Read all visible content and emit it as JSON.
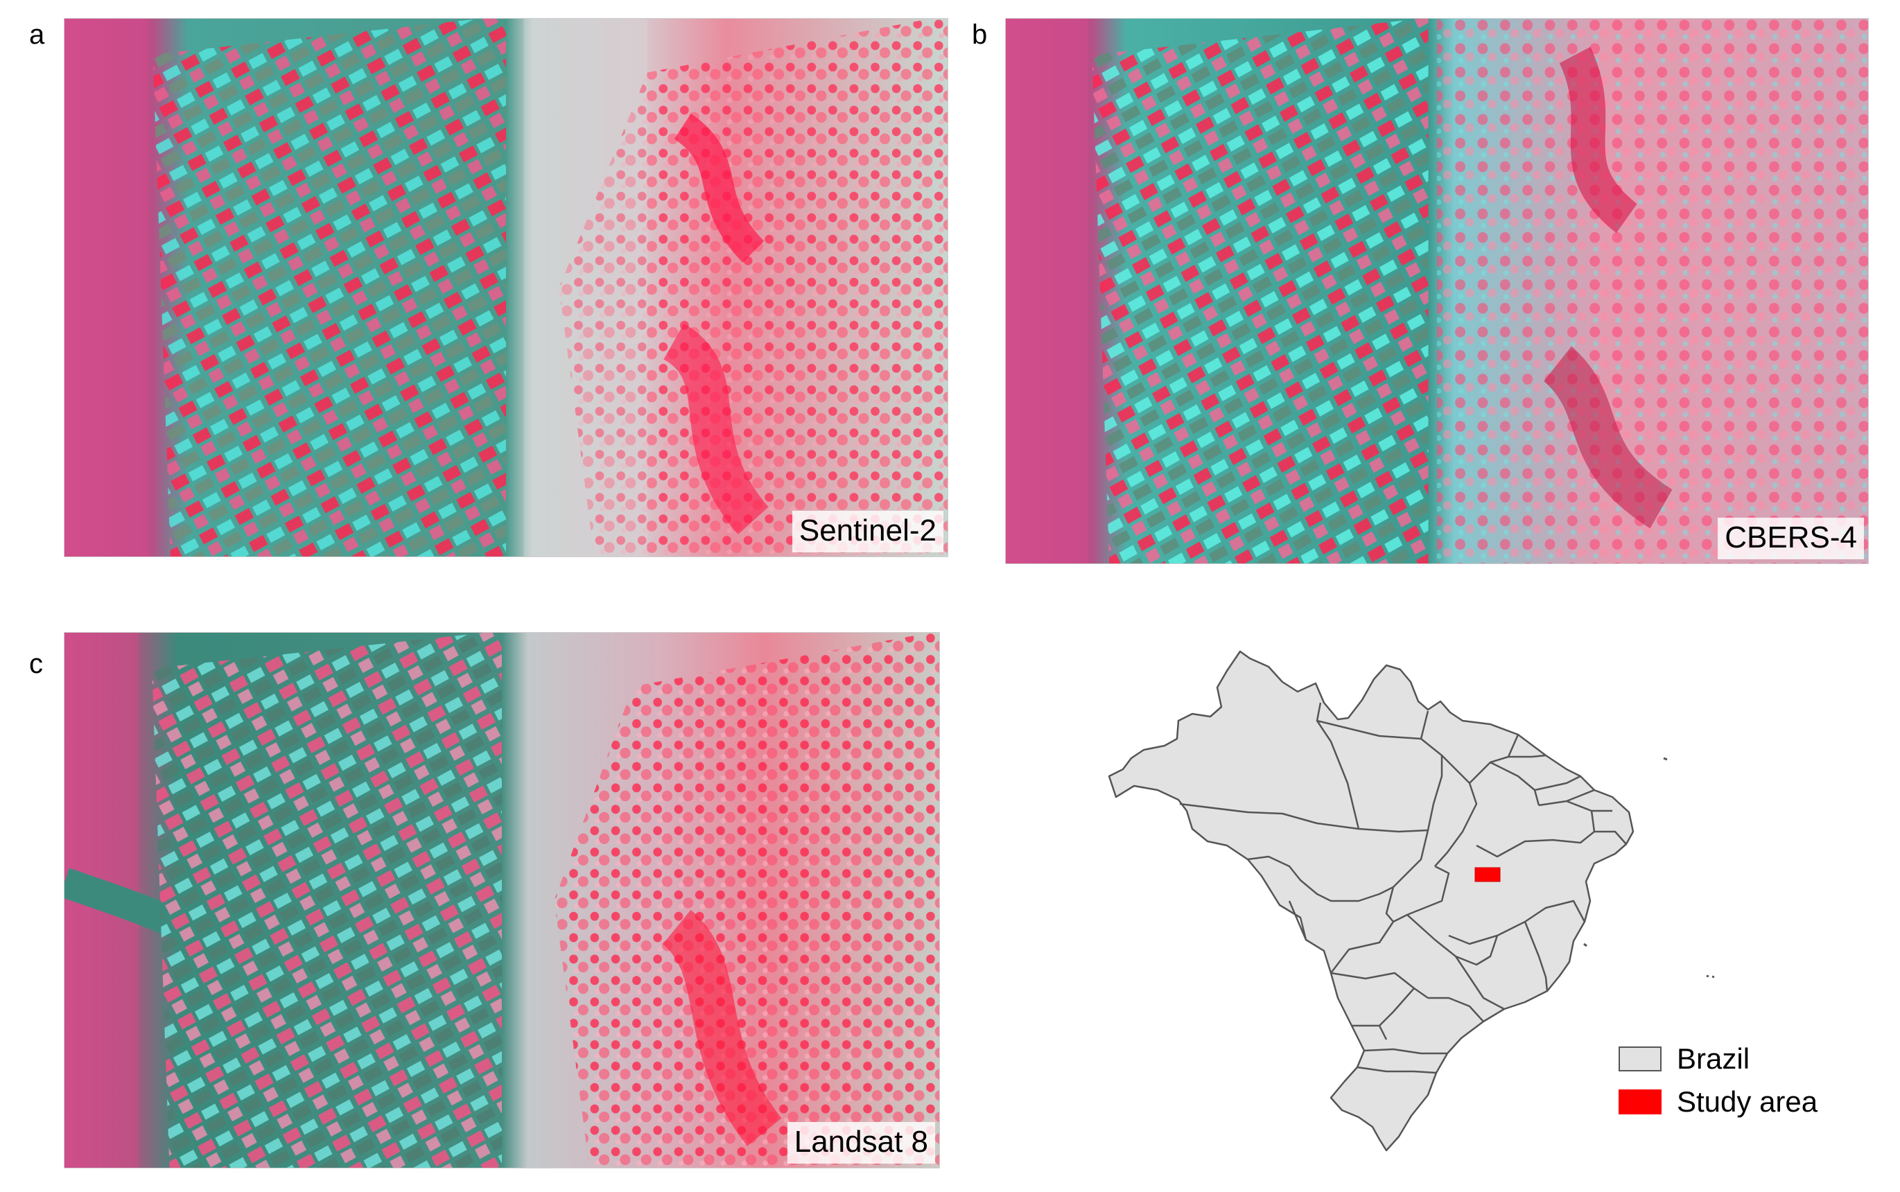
{
  "panels": [
    {
      "letter": "a",
      "caption": "Sentinel-2"
    },
    {
      "letter": "b",
      "caption": "CBERS-4"
    },
    {
      "letter": "c",
      "caption": "Landsat 8"
    }
  ],
  "legend": {
    "items": [
      {
        "label": "Brazil",
        "color": "#e2e2e2"
      },
      {
        "label": "Study area",
        "color": "#ff0000"
      }
    ]
  },
  "colors": {
    "vegetation_red": "#ff1f4f",
    "cyan_fields": "#33d6d0",
    "background_teal": "#3e9a8e",
    "light_haze": "#c8cfcf",
    "map_fill": "#e2e2e2",
    "map_stroke": "#555555",
    "study_area": "#ff0000"
  }
}
